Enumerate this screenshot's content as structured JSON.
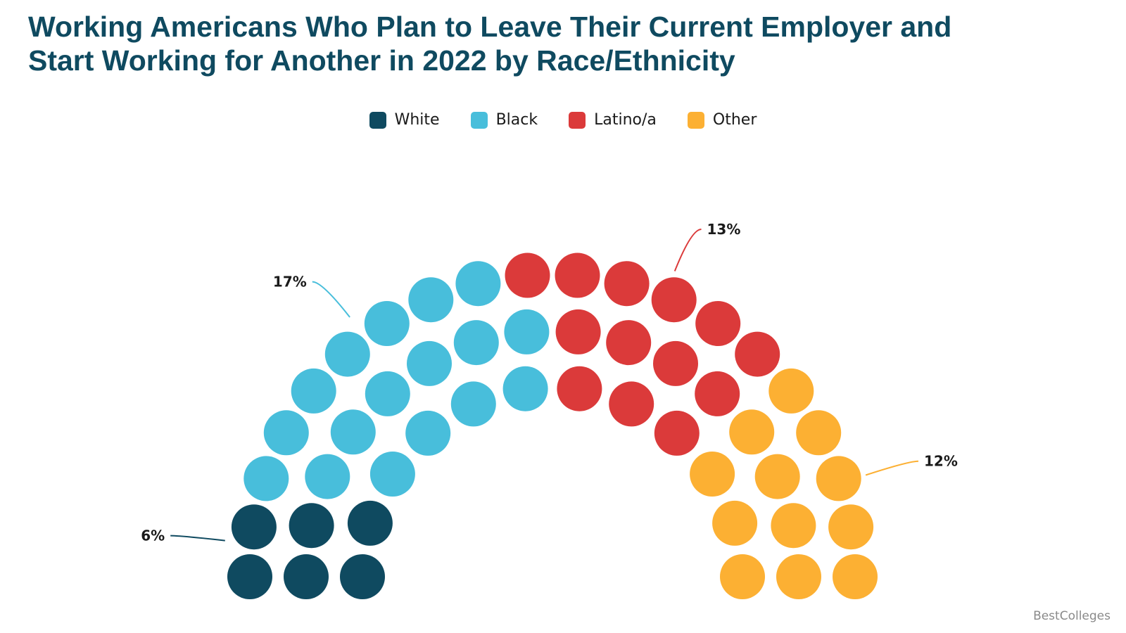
{
  "title": {
    "line1": "Working Americans Who Plan to Leave Their Current Employer and",
    "line2": "Start Working for Another in 2022 by Race/Ethnicity"
  },
  "chart_data": {
    "type": "parliament",
    "unit": "%",
    "legend_placement": "top-center",
    "series": [
      {
        "name": "White",
        "value": 6,
        "label": "6%",
        "color": "#0f4a60"
      },
      {
        "name": "Black",
        "value": 17,
        "label": "17%",
        "color": "#48bedb"
      },
      {
        "name": "Latino/a",
        "value": 13,
        "label": "13%",
        "color": "#db3a3a"
      },
      {
        "name": "Other",
        "value": 12,
        "label": "12%",
        "color": "#fcb033"
      }
    ]
  },
  "credit": "BestColleges"
}
